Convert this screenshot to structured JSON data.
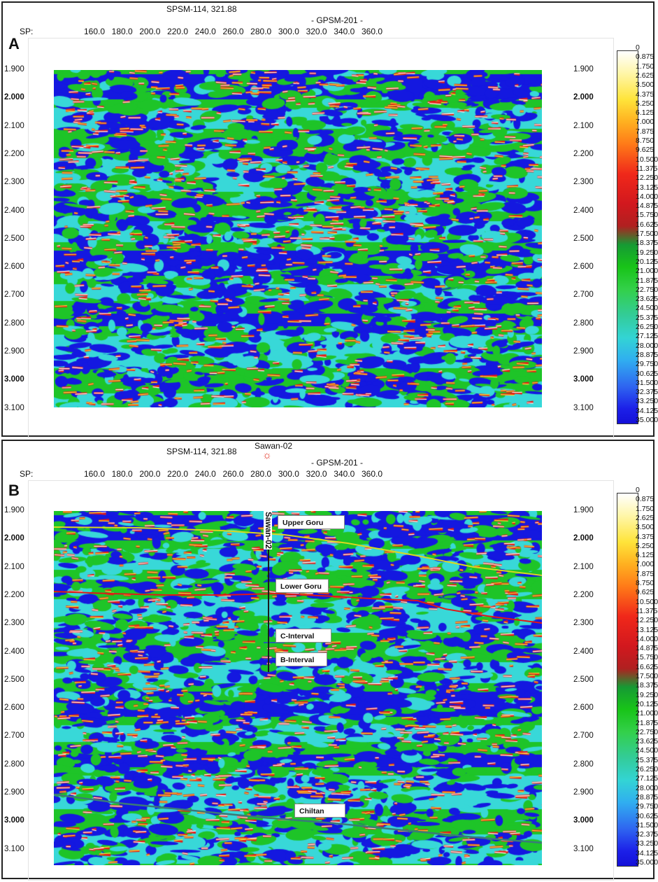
{
  "panels": {
    "a": {
      "letter": "A",
      "cross_line": "SPSM-114, 321.88",
      "line_name": "- GPSM-201 -",
      "sp_label": "SP:"
    },
    "b": {
      "letter": "B",
      "cross_line": "SPSM-114, 321.88",
      "line_name": "- GPSM-201 -",
      "sp_label": "SP:",
      "well_name": "Sawan-02",
      "well_track_label": "Sawan-02",
      "horizons": [
        {
          "name": "Upper Goru",
          "color": "#d8d820"
        },
        {
          "name": "Lower Goru",
          "color": "#e01818"
        },
        {
          "name": "C-Interval",
          "color": "#2040d8"
        },
        {
          "name": "B-Interval",
          "color": "#2040d8"
        },
        {
          "name": "Chiltan",
          "color": "#3a7a78"
        }
      ]
    }
  },
  "sp_ticks": [
    "160.0",
    "180.0",
    "200.0",
    "220.0",
    "240.0",
    "260.0",
    "280.0",
    "300.0",
    "320.0",
    "340.0",
    "360.0"
  ],
  "time_ticks": [
    "1.900",
    "2.000",
    "2.100",
    "2.200",
    "2.300",
    "2.400",
    "2.500",
    "2.600",
    "2.700",
    "2.800",
    "2.900",
    "3.000",
    "3.100"
  ],
  "colorbar_labels": [
    "0",
    "0.875",
    "1.750",
    "2.625",
    "3.500",
    "4.375",
    "5.250",
    "6.125",
    "7.000",
    "7.875",
    "8.750",
    "9.625",
    "10.500",
    "11.375",
    "12.250",
    "13.125",
    "14.000",
    "14.875",
    "15.750",
    "16.625",
    "17.500",
    "18.375",
    "19.250",
    "20.125",
    "21.000",
    "21.875",
    "22.750",
    "23.625",
    "24.500",
    "25.375",
    "26.250",
    "27.125",
    "28.000",
    "28.875",
    "29.750",
    "30.625",
    "31.500",
    "32.375",
    "33.250",
    "34.125",
    "35.000"
  ],
  "colors": {
    "white": "#ffffff",
    "cyan": "#38d8d8",
    "green": "#1ec428",
    "blue": "#1418e0",
    "red": "#e41c16",
    "yellow": "#f8e838"
  }
}
